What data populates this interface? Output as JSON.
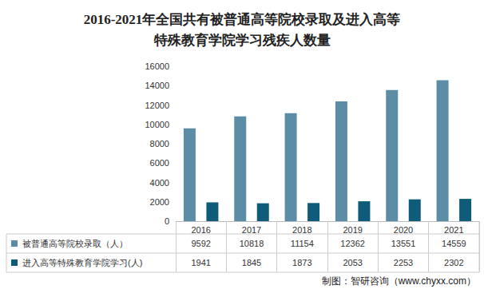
{
  "chart_data": {
    "type": "bar",
    "title": "2016-2021年全国共有被普通高等院校录取及进入高等\n特殊教育学院学习残疾人数量",
    "categories": [
      "2016",
      "2017",
      "2018",
      "2019",
      "2020",
      "2021"
    ],
    "series": [
      {
        "name": "被普通高等院校录取（人）",
        "color": "#5b8ea6",
        "values": [
          9592,
          10818,
          11154,
          12362,
          13551,
          14559
        ]
      },
      {
        "name": "进入高等特殊教育学院学习(人)",
        "color": "#0e5b7a",
        "values": [
          1941,
          1845,
          1873,
          2053,
          2253,
          2302
        ]
      }
    ],
    "ylim": [
      0,
      16000
    ],
    "yticks": [
      0,
      2000,
      4000,
      6000,
      8000,
      10000,
      12000,
      14000,
      16000
    ],
    "grid": false,
    "source": "制图：智研咨询（www.chyxx.com）"
  }
}
